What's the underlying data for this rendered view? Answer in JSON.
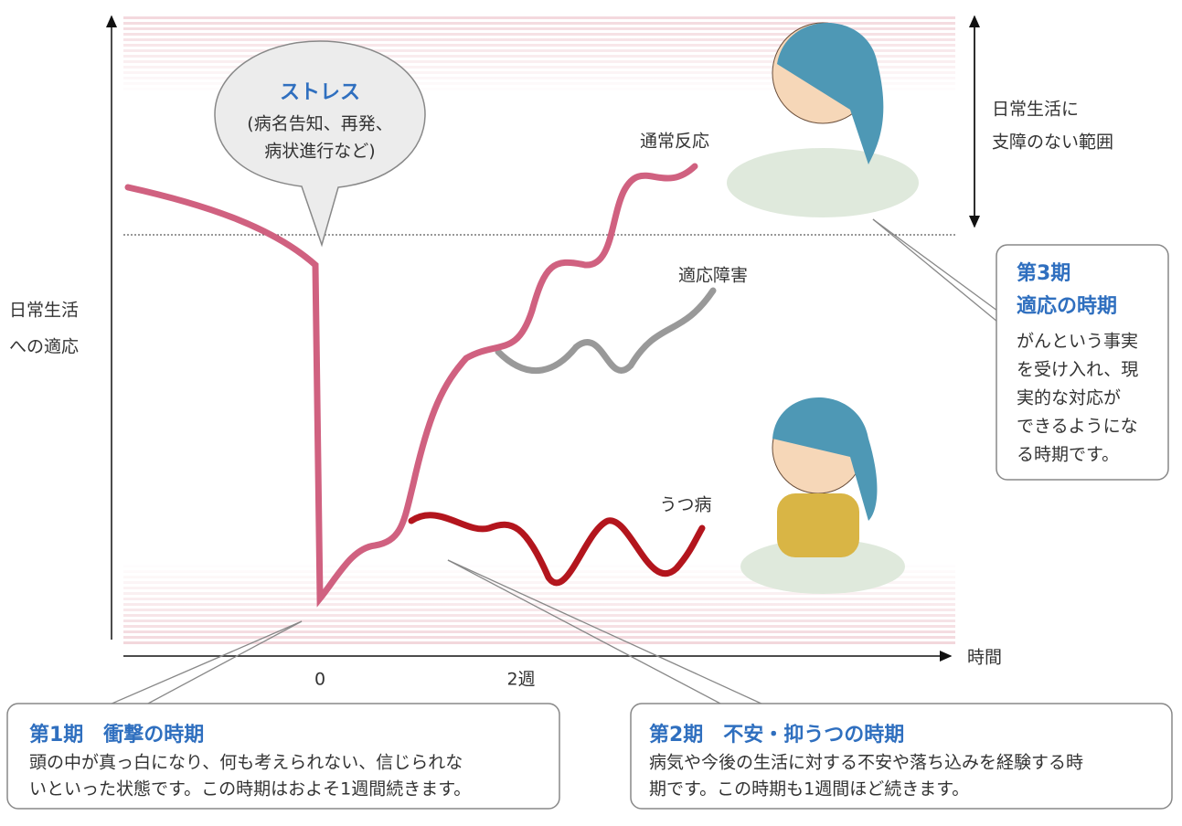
{
  "y_axis_label": [
    "日常生活",
    "への適応"
  ],
  "x_axis_label": "時間",
  "x_ticks": [
    "0",
    "2週"
  ],
  "range_label": [
    "日常生活に",
    "支障のない範囲"
  ],
  "stress_bubble": {
    "title": "ストレス",
    "detail": [
      "(病名告知、再発、",
      "病状進行など)"
    ]
  },
  "curves": {
    "normal": "通常反応",
    "adjustment": "適応障害",
    "depression": "うつ病"
  },
  "phase1": {
    "title": "第1期　衝撃の時期",
    "text": [
      "頭の中が真っ白になり、何も考えられない、信じられな",
      "いといった状態です。この時期はおよそ1週間続きます。"
    ]
  },
  "phase2": {
    "title": "第2期　不安・抑うつの時期",
    "text": [
      "病気や今後の生活に対する不安や落ち込みを経験する時",
      "期です。この時期も1週間ほど続きます。"
    ]
  },
  "phase3": {
    "title": [
      "第3期",
      "適応の時期"
    ],
    "text": [
      "がんという事実",
      "を受け入れ、現",
      "実的な対応が",
      "できるようにな",
      "る時期です。"
    ]
  }
}
